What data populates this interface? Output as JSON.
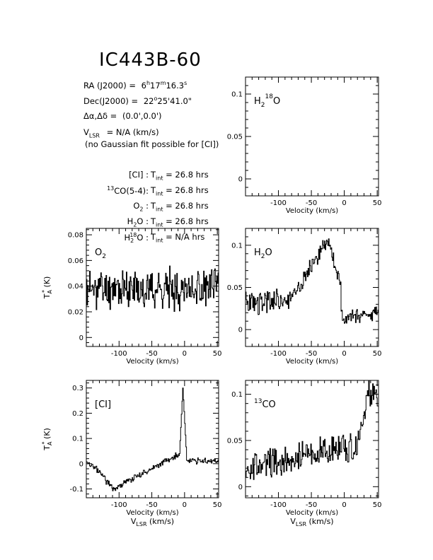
{
  "header": {
    "title": "IC443B-60",
    "ra_label": "RA (J2000) =",
    "ra_h": "6",
    "ra_h_sup": "h",
    "ra_m": "17",
    "ra_m_sup": "m",
    "ra_s": "16.3",
    "ra_s_sup": "s",
    "dec_label": "Dec(J2000) =",
    "dec_d": "22",
    "dec_d_sup": "o",
    "dec_rest": "25'41.0\"",
    "offset_label": "Δα,Δδ =",
    "offset_value": "(0.0',0.0')",
    "vlsr_label": "V",
    "vlsr_sub": "LSR",
    "vlsr_value": "= N/A  (km/s)",
    "note": "(no Gaussian fit possible for [CI])",
    "integrations": [
      {
        "pre": "",
        "line": "[CI] :",
        "tint": "T",
        "tint_sub": "int",
        "value": "= 26.8 hrs"
      },
      {
        "pre": "13",
        "line": "CO(5-4):",
        "tint": "T",
        "tint_sub": "int",
        "value": "= 26.8 hrs"
      },
      {
        "pre": "",
        "line": "O",
        "line_sub": "2",
        "line_post": " :",
        "tint": "T",
        "tint_sub": "int",
        "value": "= 26.8 hrs"
      },
      {
        "pre": "",
        "line": "H",
        "line_sub": "2",
        "line_post": "O :",
        "tint": "T",
        "tint_sub": "int",
        "value": "= 26.8 hrs"
      },
      {
        "pre": "",
        "line": "H",
        "line_sub": "2",
        "line_sup": "18",
        "line_post": "O :",
        "tint": "T",
        "tint_sub": "int",
        "value": "= N/A  hrs"
      }
    ]
  },
  "chart_data": [
    {
      "id": "h218o",
      "type": "line",
      "label": {
        "base": "H",
        "sub": "2",
        "sup": "18",
        "post": "O"
      },
      "xlabel": "Velocity (km/s)",
      "ylabel": "",
      "xlim": [
        -150,
        52
      ],
      "ylim": [
        -0.02,
        0.12
      ],
      "xticks": [
        -100,
        -50,
        0,
        50
      ],
      "yticks": [
        0,
        0.05,
        0.1
      ],
      "seed": 0,
      "segments": []
    },
    {
      "id": "o2",
      "type": "line",
      "label": {
        "base": "O",
        "sub": "2",
        "sup": "",
        "post": ""
      },
      "xlabel": "Velocity (km/s)",
      "ylabel": "T",
      "ylabel_sub": "A",
      "ylabel_sup": "*",
      "ylabel_post": " (K)",
      "xlim": [
        -150,
        52
      ],
      "ylim": [
        -0.007,
        0.085
      ],
      "xticks": [
        -100,
        -50,
        0,
        50
      ],
      "yticks": [
        0,
        0.02,
        0.04,
        0.06,
        0.08
      ],
      "seed": 11,
      "segments": [
        {
          "x0": -150,
          "x1": 52,
          "y0": 0.038,
          "y1": 0.038,
          "noise": 0.012
        }
      ]
    },
    {
      "id": "h2o",
      "type": "line",
      "label": {
        "base": "H",
        "sub": "2",
        "sup": "",
        "post": "O"
      },
      "xlabel": "Velocity (km/s)",
      "ylabel": "",
      "xlim": [
        -150,
        52
      ],
      "ylim": [
        -0.02,
        0.12
      ],
      "xticks": [
        -100,
        -50,
        0,
        50
      ],
      "yticks": [
        0,
        0.05,
        0.1
      ],
      "seed": 23,
      "segments": [
        {
          "x0": -150,
          "x1": -85,
          "y0": 0.03,
          "y1": 0.035,
          "noise": 0.012
        },
        {
          "x0": -85,
          "x1": -25,
          "y0": 0.035,
          "y1": 0.105,
          "noise": 0.008
        },
        {
          "x0": -25,
          "x1": -5,
          "y0": 0.105,
          "y1": 0.05,
          "noise": 0.008
        },
        {
          "x0": -5,
          "x1": 52,
          "y0": 0.015,
          "y1": 0.02,
          "noise": 0.007
        }
      ]
    },
    {
      "id": "ci",
      "type": "line",
      "label": {
        "base": "[CI]",
        "sub": "",
        "sup": "",
        "post": ""
      },
      "xlabel": "Velocity (km/s)",
      "xlabel2": "V",
      "xlabel2_sub": "LSR",
      "xlabel2_post": " (km/s)",
      "ylabel": "T",
      "ylabel_sub": "A",
      "ylabel_sup": "*",
      "ylabel_post": " (K)",
      "xlim": [
        -150,
        52
      ],
      "ylim": [
        -0.135,
        0.33
      ],
      "xticks": [
        -100,
        -50,
        0,
        50
      ],
      "yticks": [
        -0.1,
        0,
        0.1,
        0.2,
        0.3
      ],
      "seed": 37,
      "segments": [
        {
          "x0": -150,
          "x1": -130,
          "y0": 0.0,
          "y1": -0.03,
          "noise": 0.01
        },
        {
          "x0": -130,
          "x1": -110,
          "y0": -0.03,
          "y1": -0.1,
          "noise": 0.012
        },
        {
          "x0": -110,
          "x1": -8,
          "y0": -0.1,
          "y1": 0.04,
          "noise": 0.01
        },
        {
          "x0": -8,
          "x1": -3,
          "y0": 0.04,
          "y1": 0.3,
          "noise": 0.0
        },
        {
          "x0": -3,
          "x1": 3,
          "y0": 0.3,
          "y1": 0.02,
          "noise": 0.0
        },
        {
          "x0": 3,
          "x1": 52,
          "y0": 0.01,
          "y1": 0.01,
          "noise": 0.01
        }
      ]
    },
    {
      "id": "13co",
      "type": "line",
      "label": {
        "base": "CO",
        "sub": "",
        "sup": "",
        "pre": "13",
        "post": ""
      },
      "xlabel": "Velocity (km/s)",
      "xlabel2": "V",
      "xlabel2_sub": "LSR",
      "xlabel2_post": " (km/s)",
      "ylabel": "",
      "xlim": [
        -150,
        52
      ],
      "ylim": [
        -0.012,
        0.115
      ],
      "xticks": [
        -100,
        -50,
        0,
        50
      ],
      "yticks": [
        0,
        0.05,
        0.1
      ],
      "seed": 53,
      "segments": [
        {
          "x0": -150,
          "x1": 20,
          "y0": 0.02,
          "y1": 0.045,
          "noise": 0.013
        },
        {
          "x0": 20,
          "x1": 36,
          "y0": 0.045,
          "y1": 0.1,
          "noise": 0.01
        },
        {
          "x0": 36,
          "x1": 52,
          "y0": 0.1,
          "y1": 0.095,
          "noise": 0.012
        }
      ]
    }
  ]
}
